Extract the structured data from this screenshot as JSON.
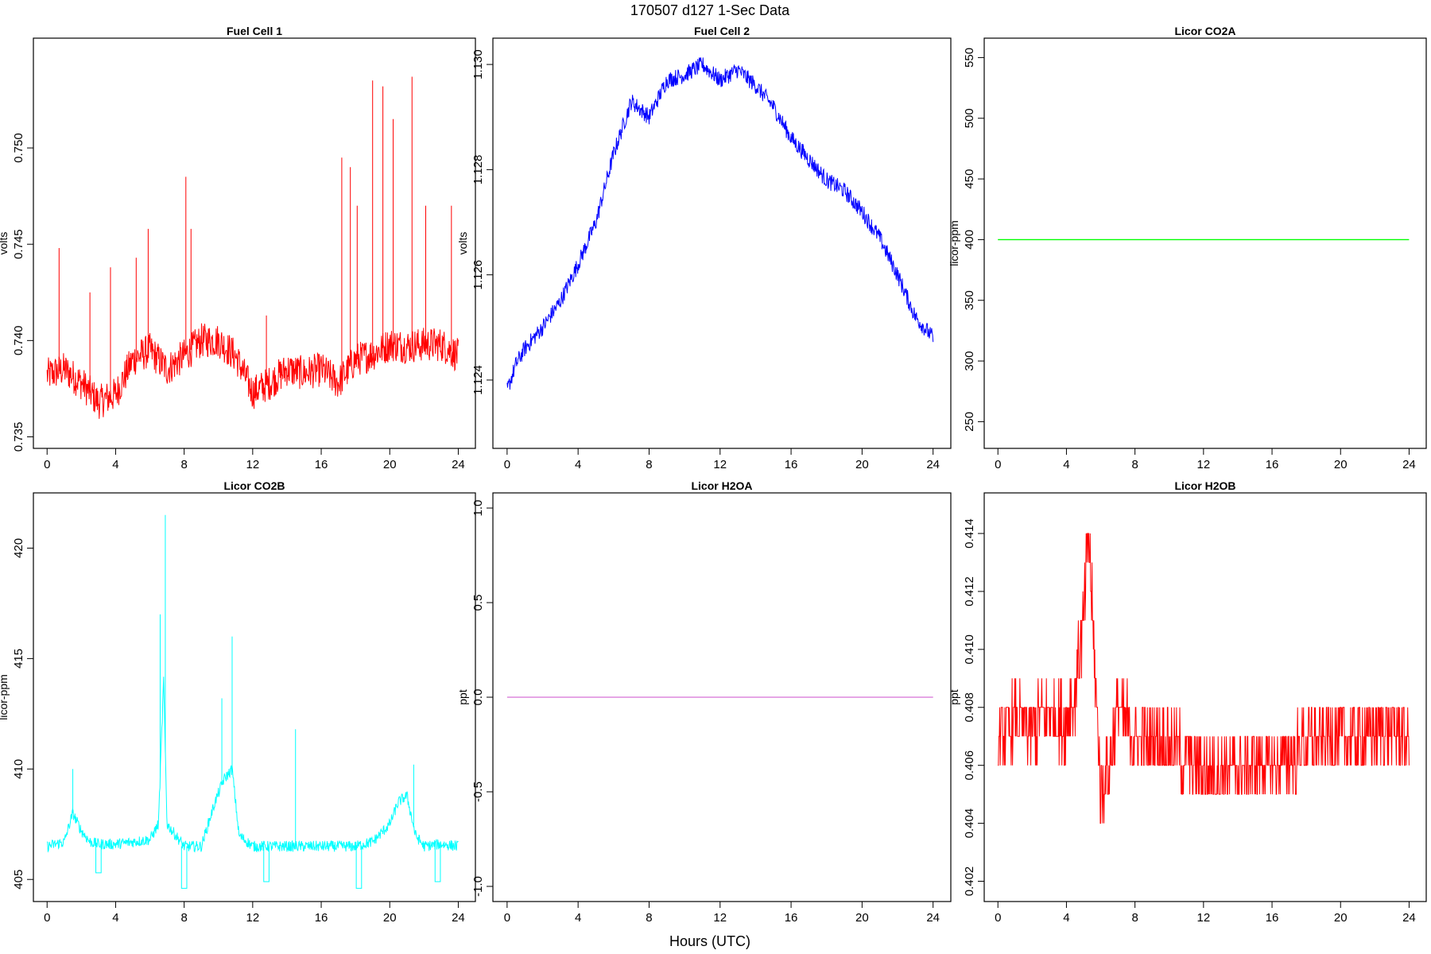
{
  "figure": {
    "title": "170507   d127   1-Sec Data",
    "xlabel": "Hours (UTC)"
  },
  "chart_data": [
    {
      "type": "line",
      "title": "Fuel Cell 1",
      "xlabel": "",
      "ylabel": "volts",
      "color": "#ff0000",
      "xlim": [
        -0.8,
        25
      ],
      "ylim": [
        0.7344,
        0.7557
      ],
      "xticks": [
        0,
        4,
        8,
        12,
        16,
        20,
        24
      ],
      "yticks": [
        0.735,
        0.74,
        0.745,
        0.75
      ],
      "ytick_labels": [
        "0.735",
        "0.740",
        "0.745",
        "0.750"
      ],
      "x": [
        0,
        1,
        2,
        3,
        4,
        5,
        6,
        7,
        8,
        9,
        10,
        11,
        12,
        13,
        14,
        15,
        16,
        17,
        18,
        19,
        20,
        21,
        22,
        23,
        24
      ],
      "values": [
        0.7382,
        0.7385,
        0.7378,
        0.7368,
        0.7372,
        0.739,
        0.7395,
        0.7385,
        0.7392,
        0.74,
        0.74,
        0.7392,
        0.7373,
        0.7378,
        0.7385,
        0.7383,
        0.7385,
        0.7378,
        0.739,
        0.7393,
        0.7398,
        0.7397,
        0.7398,
        0.7398,
        0.7392
      ],
      "spikes": [
        [
          0.7,
          0.7448
        ],
        [
          2.5,
          0.7425
        ],
        [
          3.7,
          0.7438
        ],
        [
          5.2,
          0.7443
        ],
        [
          5.9,
          0.7458
        ],
        [
          8.1,
          0.7485
        ],
        [
          8.4,
          0.7458
        ],
        [
          12.8,
          0.7413
        ],
        [
          17.2,
          0.7495
        ],
        [
          17.7,
          0.749
        ],
        [
          18.1,
          0.747
        ],
        [
          19.0,
          0.7535
        ],
        [
          19.6,
          0.7532
        ],
        [
          20.2,
          0.7515
        ],
        [
          21.3,
          0.7537
        ],
        [
          22.1,
          0.747
        ],
        [
          23.6,
          0.747
        ]
      ]
    },
    {
      "type": "line",
      "title": "Fuel Cell 2",
      "xlabel": "",
      "ylabel": "volts",
      "color": "#0000ff",
      "xlim": [
        -0.8,
        25
      ],
      "ylim": [
        1.1227,
        1.1305
      ],
      "xticks": [
        0,
        4,
        8,
        12,
        16,
        20,
        24
      ],
      "yticks": [
        1.124,
        1.126,
        1.128,
        1.13
      ],
      "ytick_labels": [
        "1.124",
        "1.126",
        "1.128",
        "1.130"
      ],
      "x": [
        0,
        0.5,
        1,
        2,
        3,
        4,
        5,
        6,
        7,
        8,
        9,
        10,
        11,
        12,
        13,
        14,
        15,
        16,
        17,
        18,
        19,
        20,
        21,
        22,
        23,
        24
      ],
      "values": [
        1.1238,
        1.1243,
        1.1246,
        1.125,
        1.1255,
        1.1262,
        1.127,
        1.1283,
        1.1293,
        1.129,
        1.1297,
        1.1298,
        1.13,
        1.1297,
        1.1299,
        1.1296,
        1.1292,
        1.1286,
        1.1282,
        1.1278,
        1.1276,
        1.1272,
        1.1267,
        1.126,
        1.1252,
        1.1248
      ]
    },
    {
      "type": "line",
      "title": "Licor CO2A",
      "xlabel": "",
      "ylabel": "licor-ppm",
      "color": "#00ff00",
      "xlim": [
        -0.8,
        25
      ],
      "ylim": [
        228,
        566
      ],
      "xticks": [
        0,
        4,
        8,
        12,
        16,
        20,
        24
      ],
      "yticks": [
        250,
        300,
        350,
        400,
        450,
        500,
        550
      ],
      "ytick_labels": [
        "250",
        "300",
        "350",
        "400",
        "450",
        "500",
        "550"
      ],
      "x": [
        0,
        24
      ],
      "values": [
        400,
        400
      ]
    },
    {
      "type": "line",
      "title": "Licor CO2B",
      "xlabel": "",
      "ylabel": "licor-ppm",
      "color": "#00ffff",
      "xlim": [
        -0.8,
        25
      ],
      "ylim": [
        404,
        422.5
      ],
      "xticks": [
        0,
        4,
        8,
        12,
        16,
        20,
        24
      ],
      "yticks": [
        405,
        410,
        415,
        420
      ],
      "ytick_labels": [
        "405",
        "410",
        "415",
        "420"
      ],
      "x": [
        0,
        1,
        1.5,
        2,
        2.5,
        3,
        4,
        5,
        6,
        6.5,
        6.8,
        7,
        8,
        9,
        9.8,
        10.3,
        10.8,
        11.2,
        12,
        13,
        14,
        15,
        16,
        17,
        18,
        19,
        20,
        20.5,
        21,
        21.5,
        22,
        23,
        24
      ],
      "values": [
        406.5,
        406.7,
        408.0,
        407.2,
        406.7,
        406.6,
        406.6,
        406.7,
        406.8,
        407.5,
        414.0,
        407.5,
        406.5,
        406.5,
        408.5,
        409.5,
        410.0,
        407.0,
        406.5,
        406.5,
        406.5,
        406.5,
        406.5,
        406.5,
        406.5,
        406.7,
        407.5,
        408.5,
        408.8,
        407.0,
        406.5,
        406.6,
        406.5
      ],
      "spikes": [
        [
          1.5,
          410.0
        ],
        [
          6.6,
          417.0
        ],
        [
          6.9,
          421.5
        ],
        [
          10.8,
          416.0
        ],
        [
          10.2,
          413.2
        ],
        [
          14.5,
          411.8
        ],
        [
          21.4,
          410.2
        ]
      ],
      "dips": [
        [
          3.0,
          405.3
        ],
        [
          8.0,
          404.6
        ],
        [
          12.8,
          404.9
        ],
        [
          18.2,
          404.6
        ],
        [
          22.8,
          404.9
        ]
      ]
    },
    {
      "type": "line",
      "title": "Licor H2OA",
      "xlabel": "",
      "ylabel": "ppt",
      "color": "#dd88dd",
      "xlim": [
        -0.8,
        25
      ],
      "ylim": [
        -1.08,
        1.08
      ],
      "xticks": [
        0,
        4,
        8,
        12,
        16,
        20,
        24
      ],
      "yticks": [
        -1.0,
        -0.5,
        0.0,
        0.5,
        1.0
      ],
      "ytick_labels": [
        "-1.0",
        "-0.5",
        "0.0",
        "0.5",
        "1.0"
      ],
      "x": [
        0,
        24
      ],
      "values": [
        0,
        0
      ]
    },
    {
      "type": "line",
      "title": "Licor H2OB",
      "xlabel": "",
      "ylabel": "ppt",
      "color": "#ff0000",
      "xlim": [
        -0.8,
        25
      ],
      "ylim": [
        0.4013,
        0.4154
      ],
      "xticks": [
        0,
        4,
        8,
        12,
        16,
        20,
        24
      ],
      "yticks": [
        0.402,
        0.404,
        0.406,
        0.408,
        0.41,
        0.412,
        0.414
      ],
      "ytick_labels": [
        "0.402",
        "0.404",
        "0.406",
        "0.408",
        "0.410",
        "0.412",
        "0.414"
      ],
      "x": [
        0,
        1,
        2,
        3,
        4,
        4.5,
        5,
        5.3,
        5.6,
        6,
        6.5,
        7,
        8,
        9,
        10,
        11,
        12,
        13,
        14,
        15,
        16,
        17,
        18,
        19,
        20,
        21,
        22,
        23,
        24
      ],
      "values": [
        0.407,
        0.4075,
        0.4072,
        0.4078,
        0.4075,
        0.4085,
        0.411,
        0.414,
        0.41,
        0.405,
        0.406,
        0.408,
        0.407,
        0.4068,
        0.4068,
        0.4062,
        0.4058,
        0.4058,
        0.4058,
        0.406,
        0.406,
        0.4062,
        0.4068,
        0.407,
        0.407,
        0.407,
        0.4072,
        0.4072,
        0.407
      ]
    }
  ]
}
